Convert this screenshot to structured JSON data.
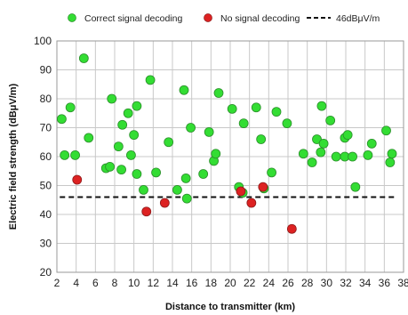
{
  "chart_data": {
    "type": "scatter",
    "title": "",
    "xlabel": "Distance to transmitter (km)",
    "ylabel": "Electric field strength (dBμV/m)",
    "xlim": [
      2,
      38
    ],
    "ylim": [
      20,
      100
    ],
    "xticks": [
      2,
      4,
      6,
      8,
      10,
      12,
      14,
      16,
      18,
      20,
      22,
      24,
      26,
      28,
      30,
      32,
      34,
      36,
      38
    ],
    "yticks": [
      20,
      30,
      40,
      50,
      60,
      70,
      80,
      90,
      100
    ],
    "grid": true,
    "legend_position": "top",
    "series": [
      {
        "name": "Correct signal decoding",
        "color": "#33dd33",
        "points": [
          [
            2.5,
            73
          ],
          [
            2.8,
            60.5
          ],
          [
            3.4,
            77
          ],
          [
            3.9,
            60.5
          ],
          [
            4.8,
            94
          ],
          [
            5.3,
            66.5
          ],
          [
            7.1,
            56
          ],
          [
            7.5,
            56.5
          ],
          [
            7.7,
            80
          ],
          [
            8.4,
            63.5
          ],
          [
            8.7,
            55.5
          ],
          [
            8.8,
            71
          ],
          [
            9.4,
            75
          ],
          [
            9.7,
            60.5
          ],
          [
            10.0,
            67.5
          ],
          [
            10.3,
            77.5
          ],
          [
            10.3,
            54
          ],
          [
            11.0,
            48.5
          ],
          [
            11.7,
            86.5
          ],
          [
            12.3,
            54.5
          ],
          [
            13.6,
            65
          ],
          [
            14.5,
            48.5
          ],
          [
            15.2,
            83
          ],
          [
            15.4,
            52.5
          ],
          [
            15.5,
            45.5
          ],
          [
            15.9,
            70
          ],
          [
            17.2,
            54
          ],
          [
            17.8,
            68.5
          ],
          [
            18.3,
            58.5
          ],
          [
            18.5,
            61
          ],
          [
            18.8,
            82
          ],
          [
            20.2,
            76.5
          ],
          [
            20.9,
            49.5
          ],
          [
            21.4,
            71.5
          ],
          [
            21.3,
            47.5
          ],
          [
            22.7,
            77
          ],
          [
            23.2,
            66
          ],
          [
            23.5,
            49
          ],
          [
            24.3,
            54.5
          ],
          [
            24.8,
            75.5
          ],
          [
            25.9,
            71.5
          ],
          [
            27.6,
            61
          ],
          [
            28.5,
            58
          ],
          [
            29.0,
            66
          ],
          [
            29.4,
            61.5
          ],
          [
            29.5,
            77.5
          ],
          [
            29.7,
            64.5
          ],
          [
            30.4,
            72.5
          ],
          [
            31.0,
            60
          ],
          [
            31.9,
            60
          ],
          [
            31.9,
            66.5
          ],
          [
            32.2,
            67.5
          ],
          [
            32.7,
            60
          ],
          [
            33.0,
            49.5
          ],
          [
            34.3,
            60.5
          ],
          [
            34.7,
            64.5
          ],
          [
            36.2,
            69
          ],
          [
            36.6,
            58
          ],
          [
            36.8,
            61
          ]
        ]
      },
      {
        "name": "No signal decoding",
        "color": "#dd2222",
        "points": [
          [
            4.1,
            52
          ],
          [
            11.3,
            41
          ],
          [
            13.2,
            44
          ],
          [
            21.1,
            48
          ],
          [
            22.2,
            44
          ],
          [
            23.4,
            49.5
          ],
          [
            26.4,
            35
          ]
        ]
      }
    ],
    "reference_line": {
      "name": "46dBμV/m",
      "y": 46,
      "x_range": [
        2.3,
        37.2
      ],
      "style": "dashed",
      "color": "#111111"
    }
  }
}
